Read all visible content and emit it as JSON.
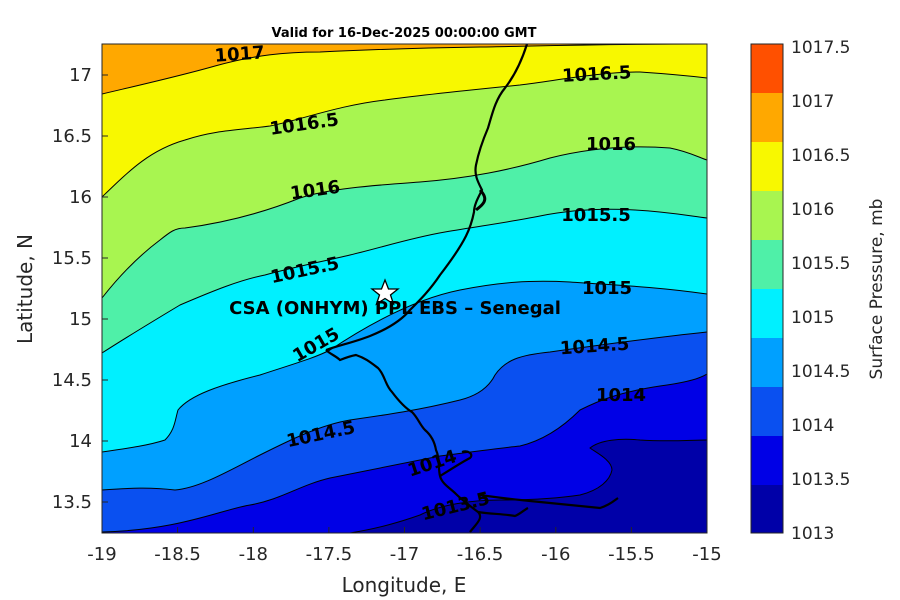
{
  "title": "Valid for 16-Dec-2025 00:00:00 GMT",
  "xlabel": "Longitude, E",
  "ylabel": "Latitude, N",
  "site_label": "CSA (ONHYM) PPL EBS  – Senegal",
  "colorbar": {
    "label": "Surface Pressure, mb",
    "ticks": [
      "1013",
      "1013.5",
      "1014",
      "1014.5",
      "1015",
      "1015.5",
      "1016",
      "1016.5",
      "1017",
      "1017.5"
    ],
    "colors": [
      "#0000a8",
      "#0000e6",
      "#0a50f0",
      "#00a0ff",
      "#00f0ff",
      "#4ff0a8",
      "#a8f550",
      "#f8f800",
      "#ffa800",
      "#ff5000"
    ]
  },
  "x_ticks": [
    "-19",
    "-18.5",
    "-18",
    "-17.5",
    "-17",
    "-16.5",
    "-16",
    "-15.5",
    "-15"
  ],
  "y_ticks": [
    "13.5",
    "14",
    "14.5",
    "15",
    "15.5",
    "16",
    "16.5",
    "17"
  ],
  "contour_labels": [
    "1017",
    "1016.5",
    "1016.5",
    "1016",
    "1016",
    "1015.5",
    "1015.5",
    "1015",
    "1015",
    "1014.5",
    "1014.5",
    "1014",
    "1014",
    "1013.5"
  ],
  "chart_data": {
    "type": "heatmap",
    "title": "Valid for 16-Dec-2025 00:00:00 GMT",
    "xlabel": "Longitude, E",
    "ylabel": "Latitude, N",
    "xlim": [
      -19,
      -15
    ],
    "ylim": [
      13.25,
      17.25
    ],
    "variable": "Surface Pressure, mb",
    "levels": [
      1013,
      1013.5,
      1014,
      1014.5,
      1015,
      1015.5,
      1016,
      1016.5,
      1017,
      1017.5
    ],
    "site": {
      "name": "CSA (ONHYM) PPL EBS  – Senegal",
      "lon": -17.1,
      "lat": 15.23
    }
  }
}
